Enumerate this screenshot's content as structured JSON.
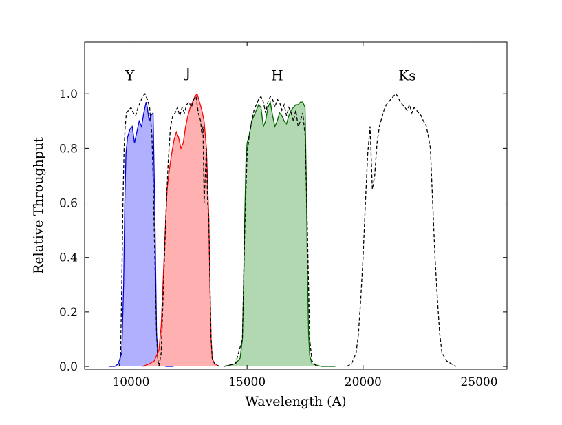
{
  "chart_data": {
    "type": "area",
    "xlabel": "Wavelength (A)",
    "ylabel": "Relative Throughput",
    "xlim": [
      8000,
      26200
    ],
    "ylim": [
      -0.01,
      1.19
    ],
    "xticks": [
      10000,
      15000,
      20000,
      25000
    ],
    "xtick_labels": [
      "10000",
      "15000",
      "20000",
      "25000"
    ],
    "yticks": [
      0.0,
      0.2,
      0.4,
      0.6,
      0.8,
      1.0
    ],
    "ytick_labels": [
      "0.0",
      "0.2",
      "0.4",
      "0.6",
      "0.8",
      "1.0"
    ],
    "grid": false,
    "annotations": [
      {
        "text": "Y",
        "x": 9950,
        "y": 1.05
      },
      {
        "text": "J",
        "x": 12450,
        "y": 1.06
      },
      {
        "text": "H",
        "x": 16300,
        "y": 1.05
      },
      {
        "text": "Ks",
        "x": 21900,
        "y": 1.05
      }
    ],
    "series": [
      {
        "band": "Y",
        "style": "filled",
        "line_color": "#0000dd",
        "fill_color": "#b0b0ff",
        "x": [
          9050,
          9300,
          9450,
          9600,
          9680,
          9730,
          9780,
          9850,
          9950,
          10050,
          10150,
          10250,
          10350,
          10450,
          10550,
          10650,
          10700,
          10780,
          10850,
          10950,
          11020,
          11070,
          11100,
          11150,
          11200,
          11300,
          11500,
          11800,
          12100,
          12300
        ],
        "y": [
          0.0,
          0.0,
          0.01,
          0.05,
          0.3,
          0.6,
          0.78,
          0.84,
          0.87,
          0.88,
          0.82,
          0.86,
          0.9,
          0.88,
          0.93,
          0.97,
          0.95,
          0.9,
          0.92,
          0.93,
          0.6,
          0.3,
          0.12,
          0.05,
          0.02,
          0.01,
          0.0,
          0.0,
          0.01,
          0.0
        ]
      },
      {
        "band": "J",
        "style": "filled",
        "line_color": "#ff0000",
        "fill_color": "#ffb0b0",
        "x": [
          10500,
          10800,
          11000,
          11200,
          11300,
          11400,
          11500,
          11550,
          11650,
          11750,
          11850,
          11950,
          12050,
          12150,
          12250,
          12350,
          12450,
          12550,
          12650,
          12750,
          12850,
          12950,
          13050,
          13150,
          13250,
          13350,
          13400,
          13450,
          13500,
          13600,
          13800
        ],
        "y": [
          0.0,
          0.01,
          0.02,
          0.06,
          0.15,
          0.35,
          0.55,
          0.65,
          0.72,
          0.78,
          0.83,
          0.86,
          0.84,
          0.8,
          0.82,
          0.88,
          0.92,
          0.95,
          0.97,
          0.99,
          1.0,
          0.97,
          0.94,
          0.9,
          0.8,
          0.55,
          0.3,
          0.1,
          0.03,
          0.01,
          0.0
        ]
      },
      {
        "band": "H",
        "style": "filled",
        "line_color": "#006400",
        "fill_color": "#b2d8b2",
        "x": [
          14000,
          14500,
          14700,
          14800,
          14850,
          14900,
          14950,
          15000,
          15100,
          15200,
          15300,
          15400,
          15500,
          15600,
          15700,
          15800,
          15900,
          16000,
          16100,
          16200,
          16300,
          16400,
          16500,
          16600,
          16700,
          16800,
          16900,
          17000,
          17100,
          17200,
          17300,
          17400,
          17500,
          17550,
          17600,
          17650,
          17700,
          17800,
          18200,
          18800
        ],
        "y": [
          0.0,
          0.01,
          0.03,
          0.1,
          0.3,
          0.55,
          0.75,
          0.82,
          0.85,
          0.9,
          0.92,
          0.94,
          0.96,
          0.95,
          0.88,
          0.9,
          0.95,
          0.97,
          0.92,
          0.88,
          0.9,
          0.93,
          0.92,
          0.9,
          0.89,
          0.92,
          0.94,
          0.95,
          0.96,
          0.96,
          0.97,
          0.97,
          0.95,
          0.7,
          0.35,
          0.12,
          0.04,
          0.01,
          0.0,
          0.0
        ]
      },
      {
        "band": "Y reference",
        "style": "dashed",
        "line_color": "#000000",
        "x": [
          9500,
          9550,
          9600,
          9650,
          9700,
          9750,
          9800,
          9900,
          10000,
          10100,
          10200,
          10300,
          10400,
          10500,
          10600,
          10700,
          10800,
          10850,
          10900,
          10950,
          11000,
          11050,
          11100,
          11150,
          11200
        ],
        "y": [
          0.0,
          0.05,
          0.3,
          0.6,
          0.8,
          0.88,
          0.93,
          0.94,
          0.95,
          0.93,
          0.92,
          0.95,
          0.97,
          0.99,
          1.0,
          0.98,
          0.95,
          0.9,
          0.85,
          0.7,
          0.5,
          0.3,
          0.12,
          0.03,
          0.0
        ]
      },
      {
        "band": "J reference",
        "style": "dashed",
        "line_color": "#000000",
        "x": [
          11200,
          11300,
          11400,
          11500,
          11600,
          11700,
          11800,
          11900,
          12000,
          12100,
          12200,
          12300,
          12400,
          12500,
          12600,
          12700,
          12800,
          12900,
          13000,
          13050,
          13100,
          13150,
          13200,
          13250,
          13300,
          13350,
          13400,
          13450,
          13500,
          13600,
          13800
        ],
        "y": [
          0.0,
          0.05,
          0.3,
          0.55,
          0.75,
          0.88,
          0.92,
          0.93,
          0.95,
          0.92,
          0.95,
          0.93,
          0.96,
          0.97,
          0.95,
          0.98,
          0.99,
          0.93,
          0.9,
          0.85,
          0.88,
          0.6,
          0.7,
          0.8,
          0.6,
          0.55,
          0.3,
          0.1,
          0.03,
          0.01,
          0.0
        ]
      },
      {
        "band": "H reference",
        "style": "dashed",
        "line_color": "#000000",
        "x": [
          14000,
          14500,
          14800,
          14900,
          15000,
          15100,
          15200,
          15300,
          15400,
          15500,
          15600,
          15700,
          15800,
          15900,
          16000,
          16100,
          16200,
          16300,
          16400,
          16500,
          16600,
          16700,
          16800,
          16900,
          17000,
          17100,
          17200,
          17300,
          17400,
          17500,
          17600,
          17700,
          17800,
          18000
        ],
        "y": [
          0.0,
          0.01,
          0.1,
          0.5,
          0.78,
          0.85,
          0.9,
          0.94,
          0.96,
          0.98,
          0.99,
          0.97,
          0.93,
          0.97,
          0.99,
          0.98,
          0.95,
          0.98,
          0.97,
          0.94,
          0.96,
          0.92,
          0.95,
          0.93,
          0.9,
          0.94,
          0.88,
          0.9,
          0.93,
          0.85,
          0.5,
          0.1,
          0.02,
          0.0
        ]
      },
      {
        "band": "Ks reference",
        "style": "dashed",
        "line_color": "#000000",
        "x": [
          19300,
          19500,
          19700,
          19800,
          19900,
          20000,
          20100,
          20200,
          20300,
          20400,
          20500,
          20600,
          20700,
          20800,
          20900,
          21000,
          21100,
          21200,
          21300,
          21400,
          21500,
          21600,
          21700,
          21800,
          21900,
          22000,
          22100,
          22200,
          22300,
          22400,
          22500,
          22600,
          22700,
          22800,
          22900,
          23000,
          23100,
          23200,
          23300,
          23400,
          23600,
          23800,
          24000
        ],
        "y": [
          0.0,
          0.01,
          0.05,
          0.12,
          0.25,
          0.4,
          0.6,
          0.78,
          0.88,
          0.65,
          0.7,
          0.82,
          0.88,
          0.91,
          0.94,
          0.96,
          0.97,
          0.98,
          0.99,
          1.0,
          0.99,
          0.97,
          0.96,
          0.95,
          0.94,
          0.96,
          0.93,
          0.95,
          0.94,
          0.93,
          0.92,
          0.9,
          0.89,
          0.85,
          0.8,
          0.6,
          0.4,
          0.25,
          0.12,
          0.05,
          0.02,
          0.01,
          0.0
        ]
      }
    ]
  }
}
